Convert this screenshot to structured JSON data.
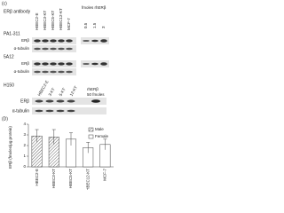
{
  "panel_c": {
    "label": "(c)",
    "antibody_label": "ERβ antibody",
    "lanes": [
      "HBEC2-E",
      "HBEC3-KT",
      "HBEC5-KT",
      "HBEC12-KT",
      "MCF-7"
    ],
    "standard_label": "fmoles rhERβ",
    "standard_amounts": [
      "0.5",
      "1.5",
      "3"
    ],
    "blots": [
      {
        "antibody": "PA1-311",
        "rows": [
          "ERβ",
          "α-tubulin"
        ]
      },
      {
        "antibody": "5A12",
        "rows": [
          "ERβ",
          "α-tubulin"
        ]
      }
    ]
  },
  "panel_h150": {
    "antibody": "H150",
    "lanes": [
      "HBEC2-E",
      "3-KT",
      "5-KT",
      "12-KT"
    ],
    "standard": [
      "rhERβ",
      "50 fmoles"
    ],
    "rows": [
      "ERβ",
      "α-tubulin"
    ]
  },
  "chart_data": {
    "type": "bar",
    "panel_label": "(D)",
    "y_label": "ERβ (fmoles/μg protein)",
    "categories": [
      "HBEC2-E",
      "HBEC3-KT",
      "HBEC5-KT",
      "HBEC12-KT",
      "MCF-7"
    ],
    "series": [
      {
        "name": "Male",
        "color": "#888888",
        "pattern": "hatch",
        "values": [
          2.9,
          2.8,
          null,
          null,
          null
        ],
        "errors": [
          0.6,
          0.7,
          null,
          null,
          null
        ]
      },
      {
        "name": "Female",
        "color": "#ffffff",
        "values": [
          null,
          null,
          2.6,
          1.8,
          2.1
        ],
        "errors": [
          null,
          null,
          0.6,
          0.5,
          0.5
        ]
      }
    ],
    "ylim": [
      0,
      4
    ],
    "yticks": [
      0,
      1,
      2,
      3,
      4
    ]
  }
}
